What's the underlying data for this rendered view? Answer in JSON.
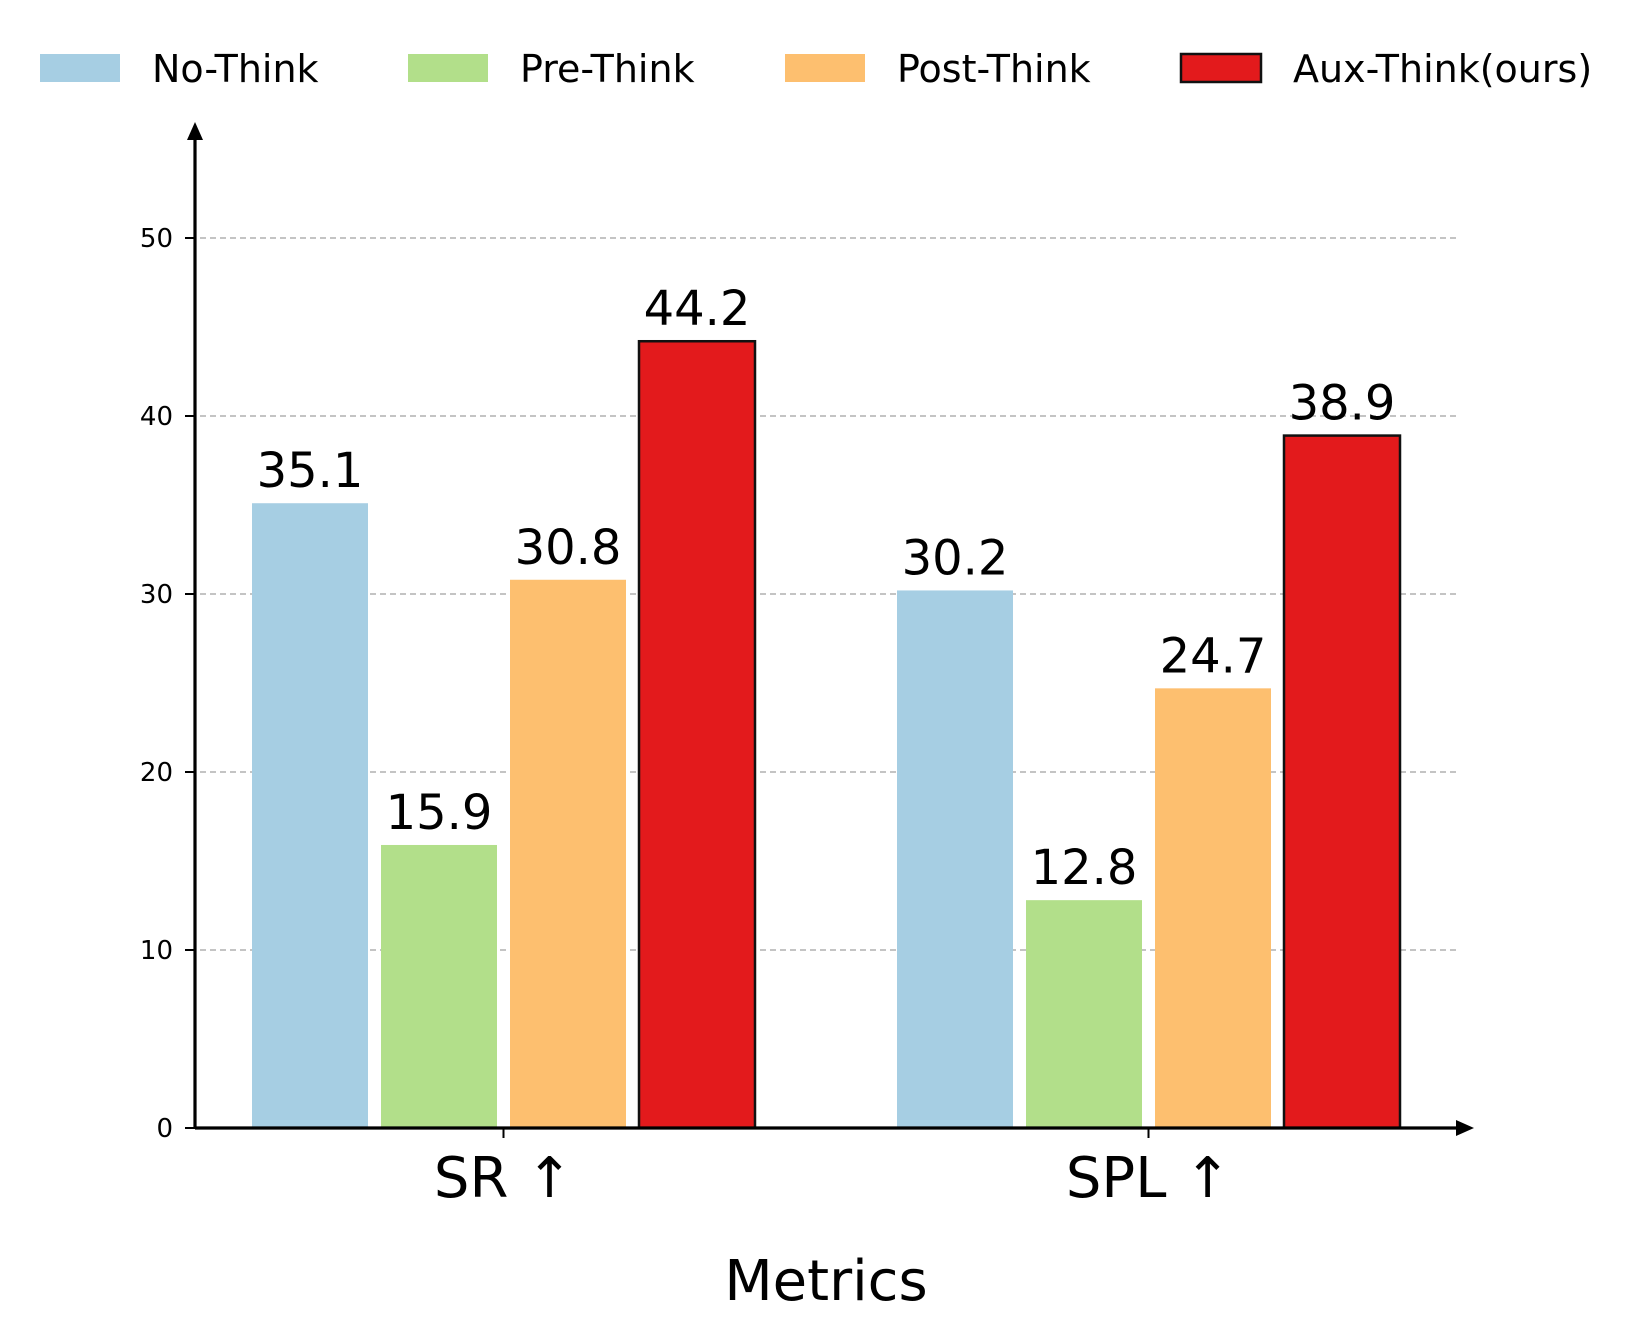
{
  "chart_data": {
    "type": "bar",
    "title": "",
    "xlabel": "Metrics",
    "ylabel": "",
    "categories": [
      "SR ↑",
      "SPL ↑"
    ],
    "series": [
      {
        "name": "No-Think",
        "color": "#a6cee3",
        "values": [
          35.1,
          30.2
        ],
        "labels": [
          "35.1",
          "30.2"
        ]
      },
      {
        "name": "Pre-Think",
        "color": "#b2df8a",
        "values": [
          15.9,
          12.8
        ],
        "labels": [
          "15.9",
          "12.8"
        ]
      },
      {
        "name": "Post-Think",
        "color": "#fdbf6f",
        "values": [
          30.8,
          24.7
        ],
        "labels": [
          "30.8",
          "24.7"
        ]
      },
      {
        "name": "Aux-Think(ours)",
        "color": "#e31a1c",
        "values": [
          44.2,
          38.9
        ],
        "labels": [
          "44.2",
          "38.9"
        ],
        "outlined": true
      }
    ],
    "yticks": [
      {
        "value": 0,
        "label": "0"
      },
      {
        "value": 10,
        "label": "10"
      },
      {
        "value": 20,
        "label": "20"
      },
      {
        "value": 30,
        "label": "30"
      },
      {
        "value": 40,
        "label": "40"
      },
      {
        "value": 50,
        "label": "50"
      }
    ],
    "ylim": [
      0,
      55
    ],
    "grid": "horizontal dashed",
    "legend_position": "top"
  }
}
